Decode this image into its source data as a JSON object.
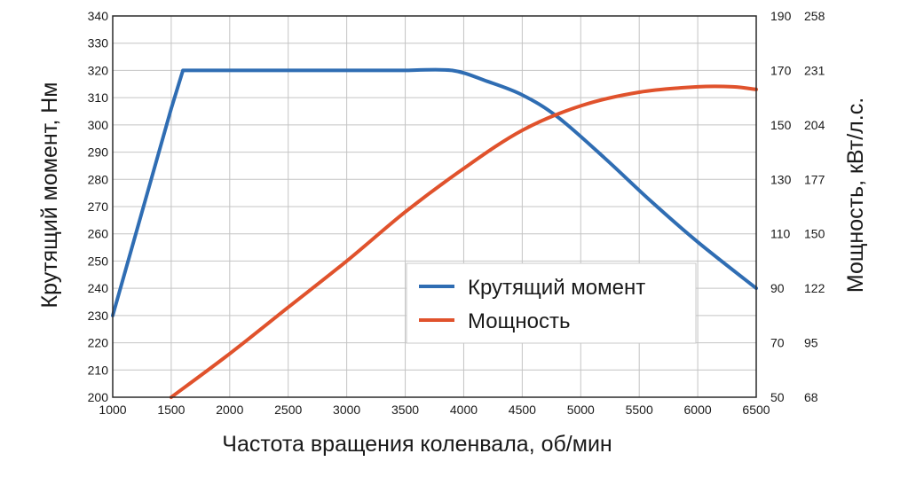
{
  "chart_data": {
    "type": "line",
    "title": "",
    "xlabel": "Частота вращения коленвала, об/мин",
    "ylabel_left": "Крутящий момент, Нм",
    "ylabel_right": "Мощность, кВт/л.с.",
    "xlim": [
      1000,
      6500
    ],
    "x_ticks": [
      "1000",
      "1500",
      "2000",
      "2500",
      "3000",
      "3500",
      "4000",
      "4500",
      "5000",
      "5500",
      "6000",
      "6500"
    ],
    "ylim_left": [
      200,
      340
    ],
    "y_ticks_left": [
      "200",
      "210",
      "220",
      "230",
      "240",
      "250",
      "260",
      "270",
      "280",
      "290",
      "300",
      "310",
      "320",
      "330",
      "340"
    ],
    "ylim_right": [
      50,
      190
    ],
    "y_ticks_right": [
      {
        "kw": "50",
        "hp": "68"
      },
      {
        "kw": "70",
        "hp": "95"
      },
      {
        "kw": "90",
        "hp": "122"
      },
      {
        "kw": "110",
        "hp": "150"
      },
      {
        "kw": "130",
        "hp": "177"
      },
      {
        "kw": "150",
        "hp": "204"
      },
      {
        "kw": "170",
        "hp": "231"
      },
      {
        "kw": "190",
        "hp": "258"
      }
    ],
    "grid": true,
    "legend_position": "center-right",
    "series": [
      {
        "name": "Крутящий момент",
        "axis": "left",
        "color": "#2f6db3",
        "x": [
          1000,
          1250,
          1500,
          1600,
          3500,
          3900,
          4200,
          4500,
          4800,
          5200,
          5600,
          6000,
          6500
        ],
        "y": [
          230,
          268,
          306,
          320,
          320,
          320,
          316,
          311,
          303,
          288,
          272,
          257,
          240
        ]
      },
      {
        "name": "Мощность",
        "axis": "right",
        "color": "#e0522c",
        "x": [
          1500,
          2000,
          2500,
          3000,
          3500,
          4000,
          4500,
          5000,
          5500,
          6000,
          6300,
          6500
        ],
        "y": [
          50,
          66,
          83,
          100,
          118,
          134,
          148,
          157,
          162,
          164,
          164,
          163
        ]
      }
    ]
  }
}
